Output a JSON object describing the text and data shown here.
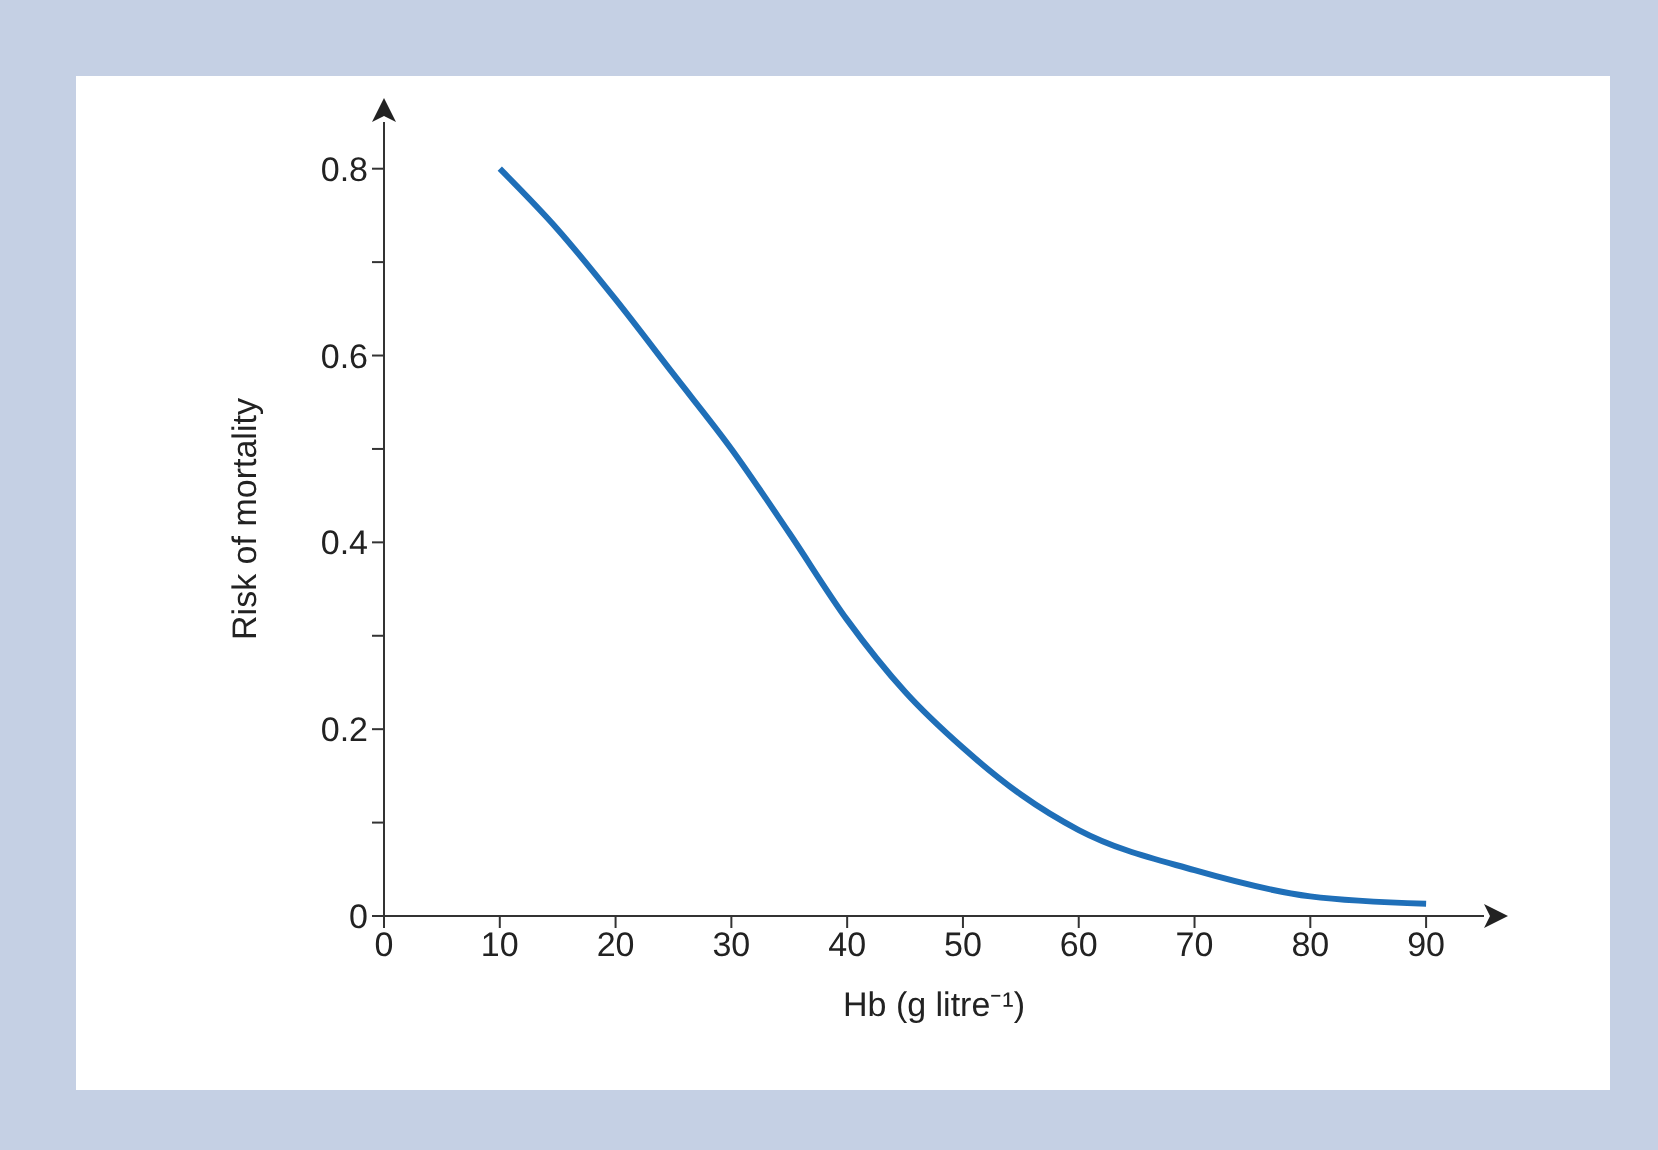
{
  "chart_data": {
    "type": "line",
    "xlabel": "Hb (g litre⁻¹)",
    "ylabel": "Risk of mortality",
    "x": [
      10,
      15,
      20,
      25,
      30,
      35,
      40,
      45,
      50,
      55,
      60,
      70,
      80,
      90
    ],
    "series": [
      {
        "color": "#1f6fb8",
        "values": [
          0.8,
          0.735,
          0.66,
          0.58,
          0.5,
          0.41,
          0.317,
          0.24,
          0.18,
          0.13,
          0.092,
          0.049,
          0.021,
          0.013
        ]
      }
    ],
    "xlim": [
      0,
      95
    ],
    "xticks": [
      0,
      10,
      20,
      30,
      40,
      50,
      60,
      70,
      80,
      90
    ],
    "ylim": [
      0,
      0.85
    ],
    "yticks": [
      0,
      {
        "value": 0.1,
        "label": null
      },
      0.2,
      {
        "value": 0.3,
        "label": null
      },
      0.4,
      {
        "value": 0.5,
        "label": null
      },
      0.6,
      {
        "value": 0.7,
        "label": null
      },
      0.8
    ],
    "grid": false,
    "legend": false,
    "marker": "none",
    "line_style": "solid"
  }
}
